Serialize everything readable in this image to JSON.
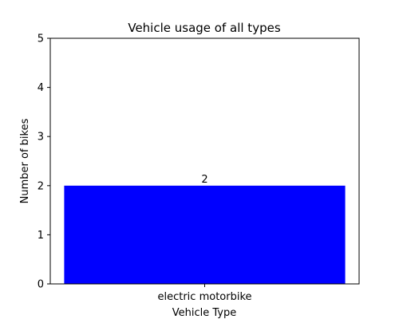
{
  "chart_data": {
    "type": "bar",
    "title": "Vehicle usage of all types",
    "xlabel": "Vehicle Type",
    "ylabel": "Number of bikes",
    "categories": [
      "electric motorbike"
    ],
    "values": [
      2
    ],
    "data_labels": [
      "2"
    ],
    "ylim": [
      0,
      5
    ],
    "yticks": [
      0,
      1,
      2,
      3,
      4,
      5
    ],
    "grid": false,
    "bar_color": "#0000ff"
  }
}
